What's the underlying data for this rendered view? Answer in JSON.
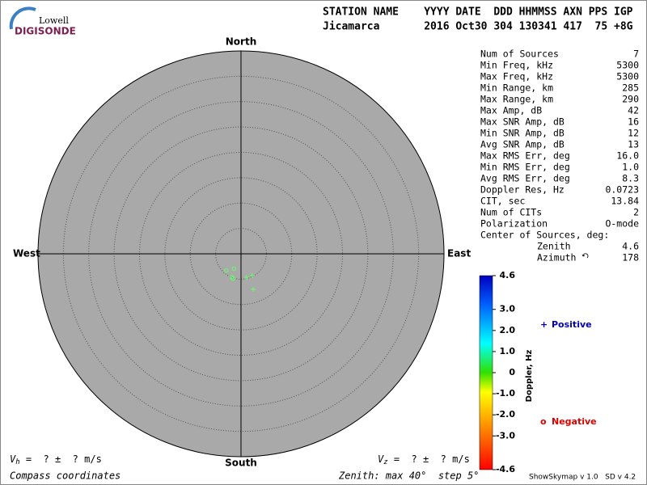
{
  "logo": {
    "line1": "Lowell",
    "line2": "DIGISONDE"
  },
  "header": {
    "labels": "STATION NAME    YYYY DATE  DDD HHMMSS AXN PPS IGP",
    "values": "Jicamarca       2016 Oct30 304 130341 417  75 +8G"
  },
  "stats": [
    [
      "Num of Sources",
      "7"
    ],
    [
      "Min Freq, kHz",
      "5300"
    ],
    [
      "Max Freq, kHz",
      "5300"
    ],
    [
      "Min Range, km",
      "285"
    ],
    [
      "Max Range, km",
      "290"
    ],
    [
      "Max Amp, dB",
      "42"
    ],
    [
      "Max SNR Amp, dB",
      "16"
    ],
    [
      "Min SNR Amp, dB",
      "12"
    ],
    [
      "Avg SNR Amp, dB",
      "13"
    ],
    [
      "Max RMS Err, deg",
      "16.0"
    ],
    [
      "Min RMS Err, deg",
      "1.0"
    ],
    [
      "Avg RMS Err, deg",
      "8.3"
    ],
    [
      "Doppler Res, Hz",
      "0.0723"
    ],
    [
      "CIT, sec",
      "13.84"
    ],
    [
      "Num of CITs",
      "2"
    ],
    [
      "Polarization",
      "O-mode"
    ]
  ],
  "center": {
    "title": "Center of Sources, deg:",
    "rows": [
      [
        "Zenith",
        "4.6"
      ],
      [
        "Azimuth",
        "178"
      ]
    ]
  },
  "chart_data": {
    "type": "skymap",
    "directions": {
      "north": "North",
      "east": "East",
      "south": "South",
      "west": "West"
    },
    "rlim": [
      0,
      40
    ],
    "rticks": [
      5,
      10,
      15,
      20,
      25,
      30,
      35
    ],
    "point_color": "#66ff66",
    "series": [
      {
        "name": "Positive",
        "marker": "+",
        "color": "#0000c0",
        "x": [
          1.1,
          2.2,
          2.4
        ],
        "y": [
          -4.6,
          -4.3,
          -7.0
        ]
      },
      {
        "name": "Negative",
        "marker": "o",
        "color": "#e00000",
        "x": [
          -2.9,
          -1.4,
          -1.8,
          -1.6
        ],
        "y": [
          -3.3,
          -2.9,
          -4.6,
          -4.9
        ]
      }
    ],
    "colorbar": {
      "label": "Doppler, Hz",
      "lim": [
        -4.6,
        4.6
      ],
      "ticks": [
        4.6,
        {
          "value": 3,
          "label": "3.0"
        },
        {
          "value": 2,
          "label": "2.0"
        },
        {
          "value": 1,
          "label": "1.0"
        },
        0,
        {
          "value": -1,
          "label": "-1.0"
        },
        {
          "value": -2,
          "label": "-2.0"
        },
        {
          "value": -3,
          "label": "-3.0"
        },
        -4.6
      ]
    }
  },
  "footer": {
    "vh": {
      "symbol": "V",
      "sub": "h",
      "text": " =  ? ±  ? m/s"
    },
    "vz": {
      "symbol": "V",
      "sub": "z",
      "text": " =  ? ±  ? m/s"
    },
    "coords": "Compass coordinates",
    "zenith": "Zenith: max 40°  step 5°",
    "version": "ShowSkymap v 1.0   SD v 4.2"
  }
}
